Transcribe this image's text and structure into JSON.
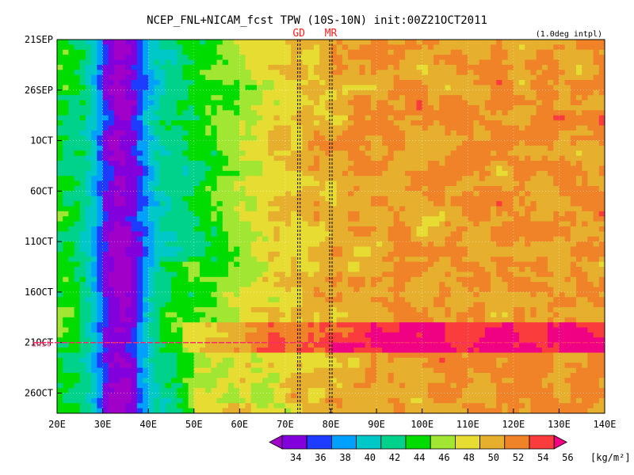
{
  "chart_data": {
    "type": "heatmap",
    "title": "NCEP_FNL+NICAM_fcst TPW (10S-10N) init:00Z21OCT2011",
    "note": "(1.0deg intpl)",
    "x_ticks": [
      "20E",
      "30E",
      "40E",
      "50E",
      "60E",
      "70E",
      "80E",
      "90E",
      "100E",
      "110E",
      "120E",
      "130E",
      "140E"
    ],
    "y_ticks": [
      "21SEP",
      "26SEP",
      "1OCT",
      "6OCT",
      "11OCT",
      "16OCT",
      "21OCT",
      "26OCT"
    ],
    "xlim": [
      20,
      140
    ],
    "ylim": [
      "2011-09-21",
      "2011-10-28"
    ],
    "grid": true,
    "init_marker": {
      "label": "init",
      "date": "2011-10-21"
    },
    "reference_lines": [
      {
        "label": "GD",
        "lon": 73
      },
      {
        "label": "MR",
        "lon": 80
      }
    ],
    "colorbar": {
      "levels": [
        "34",
        "36",
        "38",
        "40",
        "42",
        "44",
        "46",
        "48",
        "50",
        "52",
        "54",
        "56"
      ],
      "unit": "[kg/m²]",
      "colors": [
        "#a000c8",
        "#8200dc",
        "#1e3cff",
        "#00a0ff",
        "#00c8c8",
        "#00d28c",
        "#00dc00",
        "#a0e632",
        "#e6dc32",
        "#e6af2d",
        "#f08228",
        "#fa3c3c",
        "#f00082"
      ]
    },
    "features": [
      {
        "name": "dry band",
        "lon_range": [
          28,
          40
        ],
        "approx_tpw": 34
      },
      {
        "name": "moist region east",
        "lon_range": [
          90,
          140
        ],
        "approx_tpw": 52
      }
    ]
  }
}
